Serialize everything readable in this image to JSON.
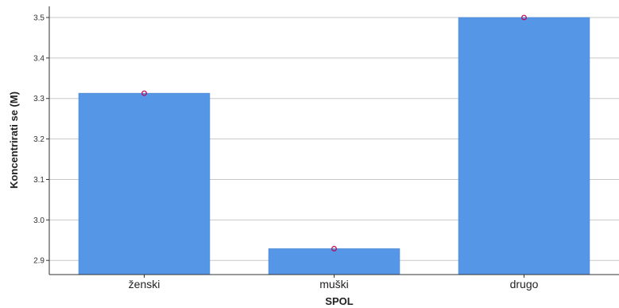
{
  "chart_data": {
    "type": "bar",
    "categories": [
      "ženski",
      "muški",
      "drugo"
    ],
    "values": [
      3.313,
      2.929,
      3.5
    ],
    "xlabel": "SPOL",
    "ylabel": "Koncentrirati se (M)",
    "ylim": [
      2.865,
      3.5
    ],
    "yticks": [
      2.9,
      3.0,
      3.1,
      3.2,
      3.3,
      3.4,
      3.5
    ],
    "grid": true,
    "bar_color": "#5596e6",
    "marker_color": "#c0004e"
  }
}
